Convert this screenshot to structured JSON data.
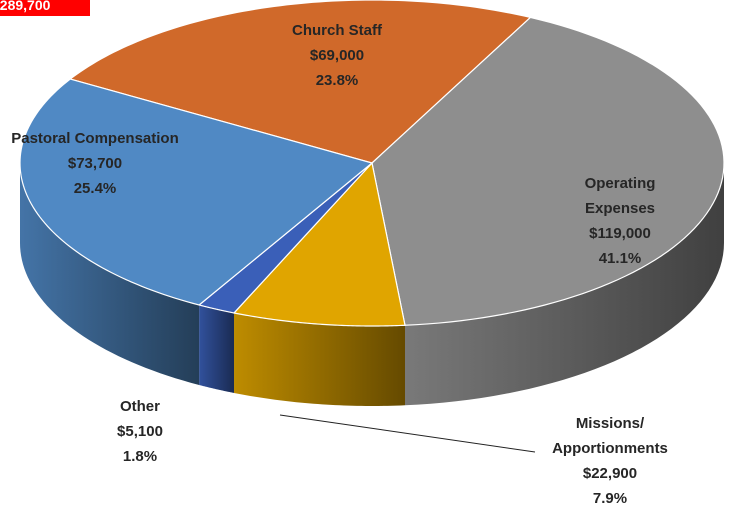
{
  "chart_data": {
    "type": "pie",
    "annotation": "$289,700",
    "categories": [
      "Church Staff",
      "Operating Expenses",
      "Missions/ Apportionments",
      "Other",
      "Pastoral Compensation"
    ],
    "values": [
      69000,
      119000,
      22900,
      5100,
      73700
    ],
    "value_labels": [
      "$69,000",
      "$119,000",
      "$22,900",
      "$5,100",
      "$73,700"
    ],
    "percent_labels": [
      "23.8%",
      "41.1%",
      "7.9%",
      "1.8%",
      "25.4%"
    ],
    "colors": [
      "#d0692a",
      "#8e8e8e",
      "#e0a500",
      "#3a5fb8",
      "#5089c4"
    ]
  }
}
